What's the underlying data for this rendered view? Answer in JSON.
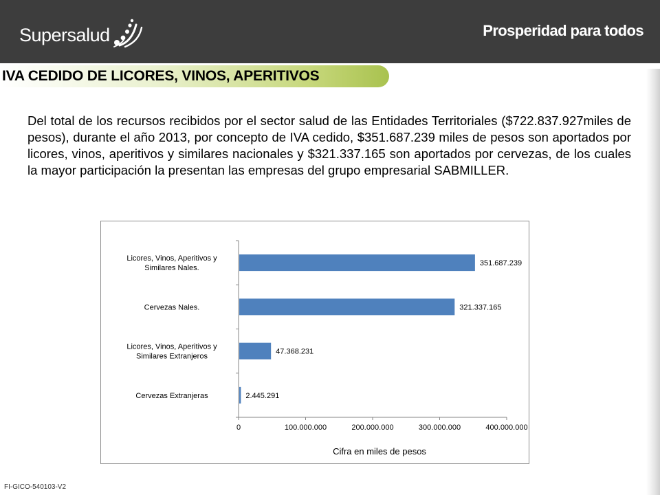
{
  "header": {
    "logo_text": "Supersalud",
    "tagline": "Prosperidad para todos"
  },
  "title": "IVA CEDIDO DE LICORES, VINOS, APERITIVOS",
  "paragraph": "Del total de los recursos recibidos por el sector salud de las Entidades Territoriales ($722.837.927miles de pesos), durante el año 2013, por concepto de IVA cedido, $351.687.239 miles de pesos son aportados por licores, vinos, aperitivos y similares nacionales y $321.337.165 son aportados por cervezas, de los cuales la mayor participación la presentan las empresas del grupo empresarial SABMILLER.",
  "footer_code": "FI-GICO-540103-V2",
  "chart_data": {
    "type": "bar",
    "orientation": "horizontal",
    "categories": [
      "Licores, Vinos, Aperitivos y Similares Nales.",
      "Cervezas Nales.",
      "Licores, Vinos, Aperitivos y Similares Extranjeros",
      "Cervezas Extranjeras"
    ],
    "category_label_lines": [
      [
        "Licores, Vinos, Aperitivos y",
        "Similares Nales."
      ],
      [
        "Cervezas Nales."
      ],
      [
        "Licores, Vinos, Aperitivos y",
        "Similares Extranjeros"
      ],
      [
        "Cervezas Extranjeras"
      ]
    ],
    "values": [
      351687239,
      321337165,
      47368231,
      2445291
    ],
    "data_labels": [
      "351.687.239",
      "321.337.165",
      "47.368.231",
      "2.445.291"
    ],
    "xlim": [
      0,
      400000000
    ],
    "x_ticks": [
      0,
      100000000,
      200000000,
      300000000,
      400000000
    ],
    "x_tick_labels": [
      "0",
      "100.000.000",
      "200.000.000",
      "300.000.000",
      "400.000.000"
    ],
    "xlabel": "Cifra en miles de pesos",
    "ylabel": "",
    "title": "",
    "bar_color": "#4f81bd",
    "grid": false,
    "legend": "none"
  }
}
